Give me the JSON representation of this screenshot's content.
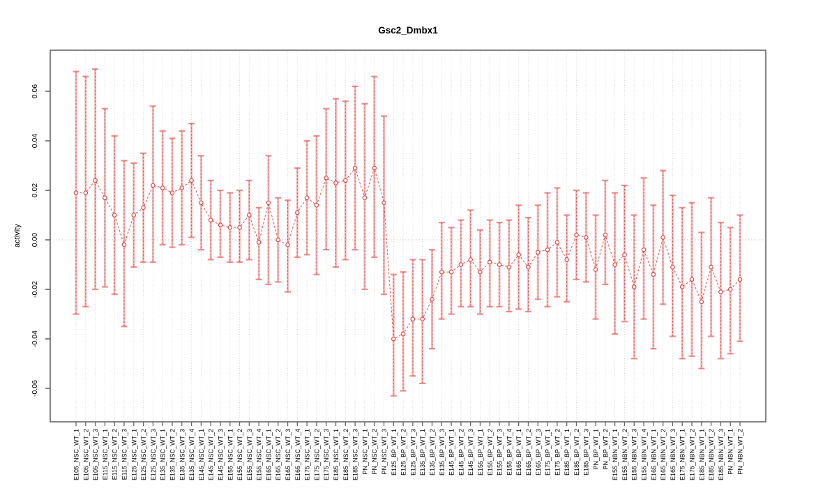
{
  "chart_data": {
    "type": "scatter",
    "subtype": "point-estimates-with-error-bars",
    "title": "Gsc2_Dmbx1",
    "xlabel": "",
    "ylabel": "activity",
    "ylim": [
      -0.0735,
      0.0766
    ],
    "yticks": [
      0.06,
      0.04,
      0.02,
      0,
      -0.02,
      -0.04,
      -0.06
    ],
    "ytick_labels": [
      "0.06",
      "0.04",
      "0.02",
      "0.00",
      "-0.02",
      "-0.04",
      "-0.06"
    ],
    "grid": "vertical dotted gridline at every category; horizontal dotted line at zero",
    "legend_position": "none",
    "line_style": "dashed",
    "marker": "open-circle",
    "colors": {
      "marker": "#e04848",
      "series_line": "#e04848",
      "error_bar_shaft": "#e85c5c",
      "error_bar_core": "#dd4444",
      "error_bar_cap": "#ea7070",
      "grid": "#c8c8c8",
      "axis": "#666666",
      "zero_line": "#bbbbbb",
      "title": "#000000"
    },
    "categories": [
      "E105_NSC_WT_1",
      "E105_NSC_WT_2",
      "E105_NSC_WT_3",
      "E115_NSC_WT_1",
      "E115_NSC_WT_2",
      "E115_NSC_WT_3",
      "E125_NSC_WT_1",
      "E125_NSC_WT_2",
      "E125_NSC_WT_3",
      "E135_NSC_WT_1",
      "E135_NSC_WT_2",
      "E135_NSC_WT_3",
      "E135_NSC_WT_4",
      "E145_NSC_WT_1",
      "E145_NSC_WT_2",
      "E145_NSC_WT_3",
      "E155_NSC_WT_1",
      "E155_NSC_WT_2",
      "E155_NSC_WT_3",
      "E155_NSC_WT_4",
      "E165_NSC_WT_1",
      "E165_NSC_WT_2",
      "E165_NSC_WT_3",
      "E165_NSC_WT_4",
      "E175_NSC_WT_1",
      "E175_NSC_WT_2",
      "E175_NSC_WT_3",
      "E185_NSC_WT_1",
      "E185_NSC_WT_2",
      "E185_NSC_WT_3",
      "PN_NSC_WT_1",
      "PN_NSC_WT_2",
      "PN_NSC_WT_3",
      "E125_BP_WT_1",
      "E125_BP_WT_2",
      "E125_BP_WT_3",
      "E135_BP_WT_1",
      "E135_BP_WT_2",
      "E135_BP_WT_3",
      "E145_BP_WT_1",
      "E145_BP_WT_2",
      "E145_BP_WT_3",
      "E155_BP_WT_1",
      "E155_BP_WT_2",
      "E155_BP_WT_3",
      "E155_BP_WT_4",
      "E165_BP_WT_1",
      "E165_BP_WT_2",
      "E165_BP_WT_3",
      "E175_BP_WT_1",
      "E175_BP_WT_2",
      "E185_BP_WT_1",
      "E185_BP_WT_2",
      "E185_BP_WT_3",
      "PN_BP_WT_1",
      "PN_BP_WT_2",
      "E155_NBN_WT_1",
      "E155_NBN_WT_2",
      "E155_NBN_WT_3",
      "E155_NBN_WT_4",
      "E165_NBN_WT_1",
      "E165_NBN_WT_2",
      "E165_NBN_WT_3",
      "E175_NBN_WT_1",
      "E175_NBN_WT_2",
      "E185_NBN_WT_1",
      "E185_NBN_WT_2",
      "E185_NBN_WT_3",
      "PN_NBN_WT_1",
      "PN_NBN_WT_2"
    ],
    "series": [
      {
        "name": "activity",
        "values": [
          0.019,
          0.019,
          0.024,
          0.017,
          0.01,
          -0.002,
          0.01,
          0.013,
          0.022,
          0.021,
          0.019,
          0.021,
          0.024,
          0.015,
          0.008,
          0.006,
          0.005,
          0.005,
          0.01,
          -0.001,
          0.015,
          0.0,
          -0.002,
          0.011,
          0.017,
          0.014,
          0.025,
          0.023,
          0.024,
          0.029,
          0.017,
          0.029,
          0.015,
          -0.04,
          -0.038,
          -0.032,
          -0.032,
          -0.024,
          -0.013,
          -0.013,
          -0.01,
          -0.008,
          -0.013,
          -0.009,
          -0.01,
          -0.011,
          -0.006,
          -0.011,
          -0.005,
          -0.004,
          -0.001,
          -0.008,
          0.002,
          0.001,
          -0.012,
          0.002,
          -0.01,
          -0.006,
          -0.019,
          -0.004,
          -0.014,
          0.001,
          -0.011,
          -0.019,
          -0.016,
          -0.025,
          -0.011,
          -0.021,
          -0.02,
          -0.016
        ],
        "err_low": [
          -0.03,
          -0.027,
          -0.02,
          -0.019,
          -0.022,
          -0.035,
          -0.011,
          -0.009,
          -0.009,
          -0.002,
          -0.003,
          -0.002,
          0.001,
          -0.004,
          -0.008,
          -0.007,
          -0.009,
          -0.009,
          -0.008,
          -0.016,
          -0.018,
          -0.017,
          -0.021,
          -0.007,
          -0.006,
          -0.014,
          -0.004,
          -0.011,
          -0.008,
          -0.004,
          -0.02,
          -0.007,
          -0.022,
          -0.063,
          -0.061,
          -0.055,
          -0.058,
          -0.044,
          -0.032,
          -0.03,
          -0.027,
          -0.027,
          -0.03,
          -0.027,
          -0.027,
          -0.029,
          -0.028,
          -0.029,
          -0.024,
          -0.027,
          -0.023,
          -0.025,
          -0.016,
          -0.017,
          -0.032,
          -0.018,
          -0.038,
          -0.033,
          -0.048,
          -0.032,
          -0.044,
          -0.026,
          -0.039,
          -0.048,
          -0.047,
          -0.052,
          -0.039,
          -0.048,
          -0.046,
          -0.041
        ],
        "err_high": [
          0.068,
          0.066,
          0.069,
          0.053,
          0.042,
          0.032,
          0.031,
          0.035,
          0.054,
          0.044,
          0.041,
          0.044,
          0.047,
          0.034,
          0.024,
          0.02,
          0.019,
          0.02,
          0.024,
          0.013,
          0.034,
          0.017,
          0.016,
          0.029,
          0.04,
          0.042,
          0.053,
          0.057,
          0.056,
          0.062,
          0.055,
          0.066,
          0.05,
          -0.014,
          -0.013,
          -0.008,
          -0.008,
          -0.004,
          0.007,
          0.005,
          0.008,
          0.012,
          0.004,
          0.008,
          0.007,
          0.008,
          0.014,
          0.009,
          0.014,
          0.019,
          0.021,
          0.01,
          0.02,
          0.019,
          0.01,
          0.024,
          0.019,
          0.022,
          0.01,
          0.025,
          0.014,
          0.028,
          0.018,
          0.013,
          0.015,
          0.003,
          0.017,
          0.007,
          0.005,
          0.01
        ]
      }
    ]
  }
}
